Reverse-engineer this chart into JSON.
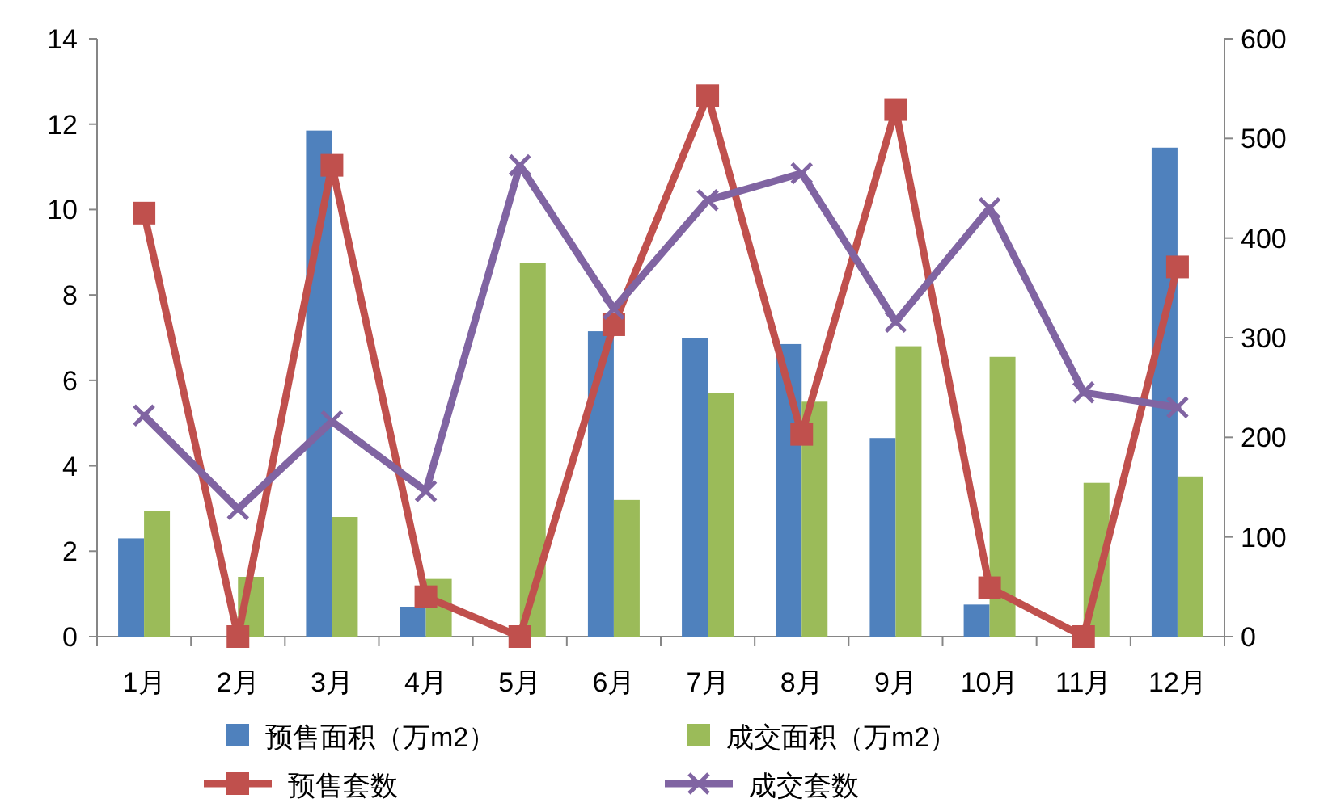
{
  "chart_data": {
    "type": "bar",
    "categories": [
      "1月",
      "2月",
      "3月",
      "4月",
      "5月",
      "6月",
      "7月",
      "8月",
      "9月",
      "10月",
      "11月",
      "12月"
    ],
    "series": [
      {
        "name": "预售面积（万m2）",
        "color": "#4f81bd",
        "values": [
          2.3,
          0,
          11.85,
          0.7,
          0,
          7.15,
          7.0,
          6.85,
          4.65,
          0.75,
          0,
          11.45
        ]
      },
      {
        "name": "成交面积（万m2）",
        "color": "#9bbb59",
        "values": [
          2.95,
          1.4,
          2.8,
          1.35,
          8.75,
          3.2,
          5.7,
          5.5,
          6.8,
          6.55,
          3.6,
          3.75
        ]
      },
      {
        "name": "预售套数",
        "type": "line",
        "axis": "y2",
        "marker": "square",
        "color": "#c0504d",
        "values": [
          425,
          0,
          473,
          40,
          0,
          313,
          543,
          203,
          529,
          49,
          0,
          371
        ]
      },
      {
        "name": "成交套数",
        "type": "line",
        "axis": "y2",
        "marker": "cross",
        "color": "#8064a2",
        "values": [
          222,
          128,
          216,
          146,
          473,
          329,
          438,
          465,
          316,
          430,
          245,
          230
        ]
      }
    ],
    "ylim": [
      0,
      14
    ],
    "yticks": [
      0,
      2,
      4,
      6,
      8,
      10,
      12,
      14
    ],
    "y2lim": [
      0,
      600
    ],
    "y2ticks": [
      0,
      100,
      200,
      300,
      400,
      500,
      600
    ],
    "legend": "bottom"
  }
}
